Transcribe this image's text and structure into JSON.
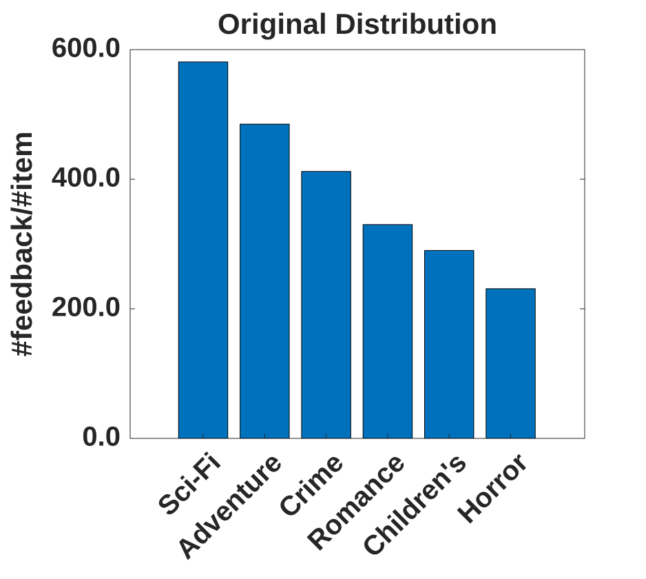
{
  "chart_data": {
    "type": "bar",
    "title": "Original Distribution",
    "y_label": "#feedback/#item",
    "categories": [
      "Sci-Fi",
      "Adventure",
      "Crime",
      "Romance",
      "Children's",
      "Horror"
    ],
    "values": [
      581,
      485,
      412,
      330,
      290,
      231
    ],
    "color": "#0072bd",
    "ylim": [
      0,
      600
    ],
    "yticks": [
      {
        "value": 0,
        "label": "0.0"
      },
      {
        "value": 200,
        "label": "200.0"
      },
      {
        "value": 400,
        "label": "400.0"
      },
      {
        "value": 600,
        "label": "600.0"
      }
    ],
    "grid": false
  }
}
